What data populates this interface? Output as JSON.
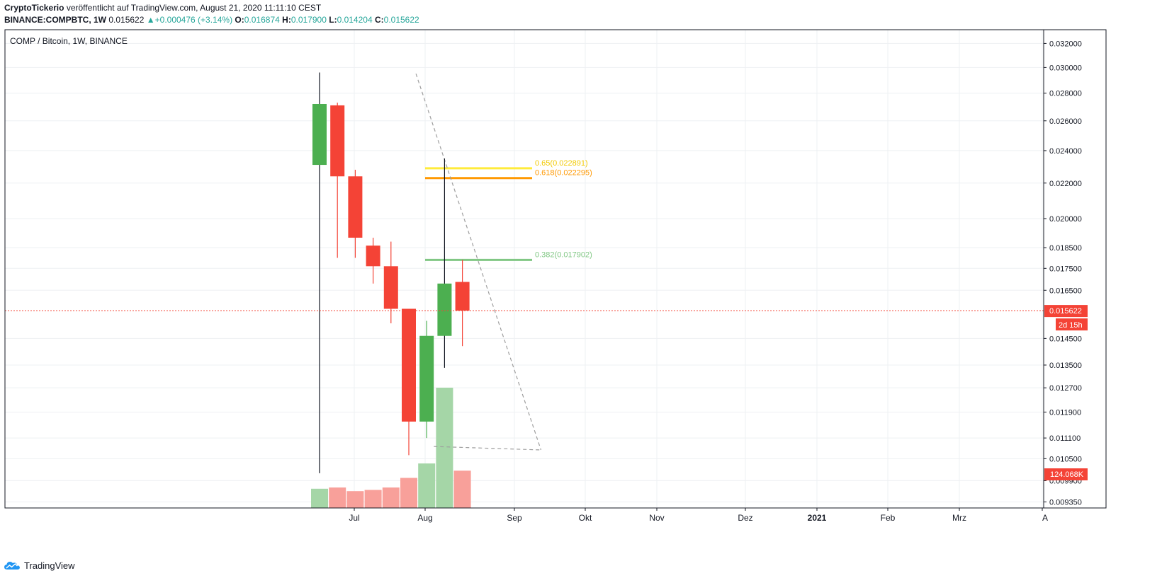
{
  "header": {
    "author": "CryptoTickerio",
    "published_text": "veröffentlicht auf TradingView.com, August 21, 2020 11:11:10 CEST",
    "symbol": "BINANCE:COMPBTC, 1W",
    "last_price": "0.015622",
    "change": "+0.000476 (+3.14%)",
    "open_label": "O:",
    "open": "0.016874",
    "high_label": "H:",
    "high": "0.017900",
    "low_label": "L:",
    "low": "0.014204",
    "close_label": "C:",
    "close": "0.015622"
  },
  "colors": {
    "up": "#4caf50",
    "down": "#f44336",
    "volume_up": "#a5d6a7",
    "volume_down": "#f8a09a",
    "fib_065": "#ffeb3b",
    "fib_0618": "#ff9800",
    "fib_0382": "#81c784",
    "price_line": "#f44336"
  },
  "chart_data": {
    "type": "candlestick",
    "title": "COMP / Bitcoin, 1W, BINANCE",
    "y_scale": "log",
    "ylim": [
      0.0092,
      0.0332
    ],
    "y_ticks": [
      "0.032000",
      "0.030000",
      "0.028000",
      "0.026000",
      "0.024000",
      "0.022000",
      "0.020000",
      "0.018500",
      "0.017500",
      "0.016500",
      "0.014500",
      "0.013500",
      "0.012700",
      "0.011900",
      "0.011100",
      "0.010500",
      "0.009900",
      "0.009350"
    ],
    "x_ticks": [
      "Jul",
      "Aug",
      "Sep",
      "Okt",
      "Nov",
      "Dez",
      "2021",
      "Feb",
      "Mrz",
      "A"
    ],
    "bold_x_ticks": [
      "2021"
    ],
    "candles": [
      {
        "week": 0,
        "open": 0.0231,
        "high": 0.0296,
        "low": 0.0101,
        "close": 0.0272
      },
      {
        "week": 1,
        "open": 0.0271,
        "high": 0.0273,
        "low": 0.018,
        "close": 0.0224
      },
      {
        "week": 2,
        "open": 0.0224,
        "high": 0.0228,
        "low": 0.018,
        "close": 0.019
      },
      {
        "week": 3,
        "open": 0.0186,
        "high": 0.019,
        "low": 0.0168,
        "close": 0.0176
      },
      {
        "week": 4,
        "open": 0.0176,
        "high": 0.0188,
        "low": 0.0151,
        "close": 0.0157
      },
      {
        "week": 5,
        "open": 0.0157,
        "high": 0.0157,
        "low": 0.0106,
        "close": 0.0116
      },
      {
        "week": 6,
        "open": 0.0116,
        "high": 0.0152,
        "low": 0.0111,
        "close": 0.0146
      },
      {
        "week": 7,
        "open": 0.0146,
        "high": 0.0235,
        "low": 0.0134,
        "close": 0.0168
      },
      {
        "week": 8,
        "open": 0.016874,
        "high": 0.0179,
        "low": 0.014204,
        "close": 0.015622
      }
    ],
    "volume": {
      "last_label": "124.068K",
      "relative": [
        0.16,
        0.17,
        0.14,
        0.15,
        0.17,
        0.25,
        0.37,
        1.0,
        0.31
      ]
    },
    "fib_levels": [
      {
        "label": "0.65(0.022891)",
        "value": 0.022891,
        "color": "#ffeb3b"
      },
      {
        "label": "0.618(0.022295)",
        "value": 0.022295,
        "color": "#ff9800"
      },
      {
        "label": "0.382(0.017902)",
        "value": 0.017902,
        "color": "#81c784"
      }
    ],
    "trend_lines": [
      {
        "from": {
          "week": 5.4,
          "value": 0.0295
        },
        "to": {
          "week": 12.4,
          "value": 0.01075
        }
      },
      {
        "from": {
          "week": 6.4,
          "value": 0.01085
        },
        "to": {
          "week": 12.4,
          "value": 0.01075
        }
      }
    ],
    "current_price": {
      "label": "0.015622",
      "value": 0.015622,
      "countdown": "2d 15h"
    }
  },
  "footer": {
    "brand": "TradingView"
  }
}
